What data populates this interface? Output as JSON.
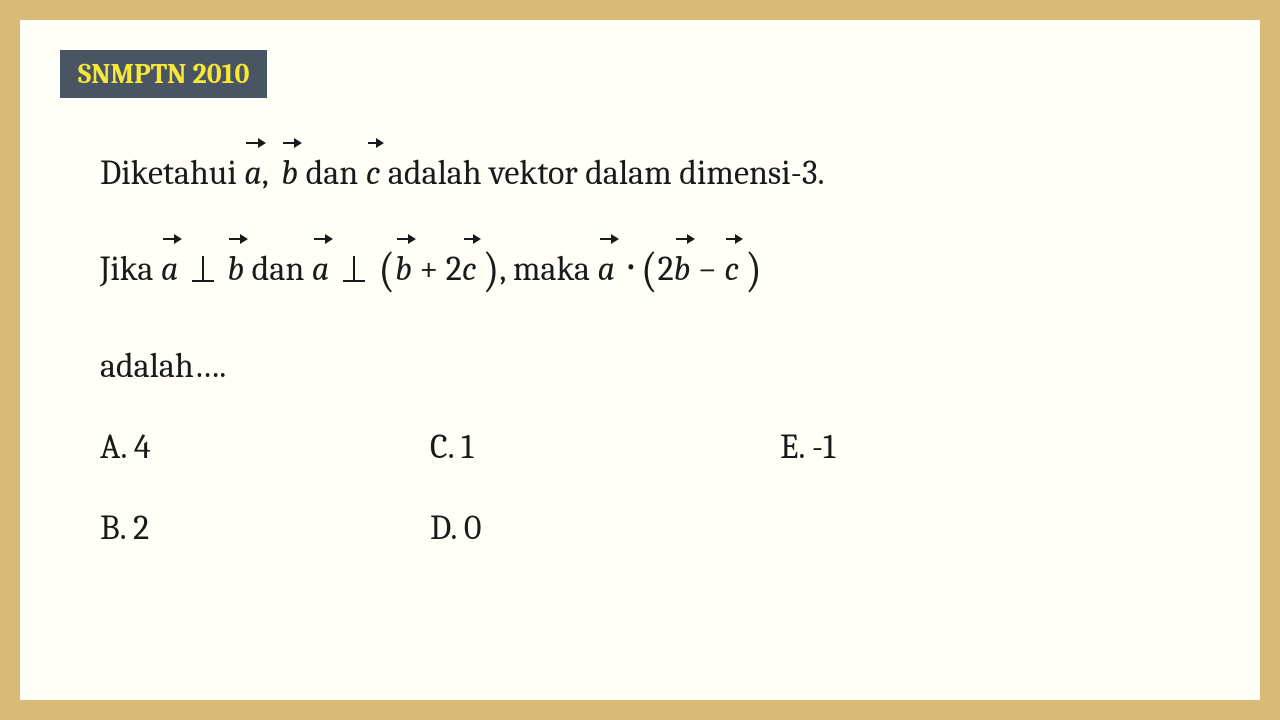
{
  "colors": {
    "outer_bg": "#d8bc76",
    "inner_bg": "#fffef7",
    "badge_bg": "#4a5563",
    "badge_text": "#f7e838",
    "text": "#1a1a1a"
  },
  "typography": {
    "font_family": "Cambria, Georgia, serif",
    "badge_fontsize": 28,
    "body_fontsize": 34
  },
  "badge": "SNMPTN 2010",
  "line1": {
    "t1": "Diketahui ",
    "a": "a",
    "t2": ", ",
    "b": "b",
    "t3": " dan ",
    "c": "c",
    "t4": " adalah vektor dalam dimensi-3."
  },
  "line2": {
    "t1": "Jika ",
    "a1": "a",
    "t2": " ",
    "b1": "b",
    "t3": " dan ",
    "a2": "a",
    "t4": " ",
    "b2": "b",
    "t5": " + 2",
    "c1": "c",
    "t6": ", maka ",
    "a3": "a",
    "t7": " ",
    "two": "2",
    "b3": "b",
    "t8": " − ",
    "c2": "c"
  },
  "line3": "adalah….",
  "options": {
    "a": "A. 4",
    "b": "B. 2",
    "c": "C.  1",
    "d": "D.  0",
    "e": "E.  -1"
  }
}
